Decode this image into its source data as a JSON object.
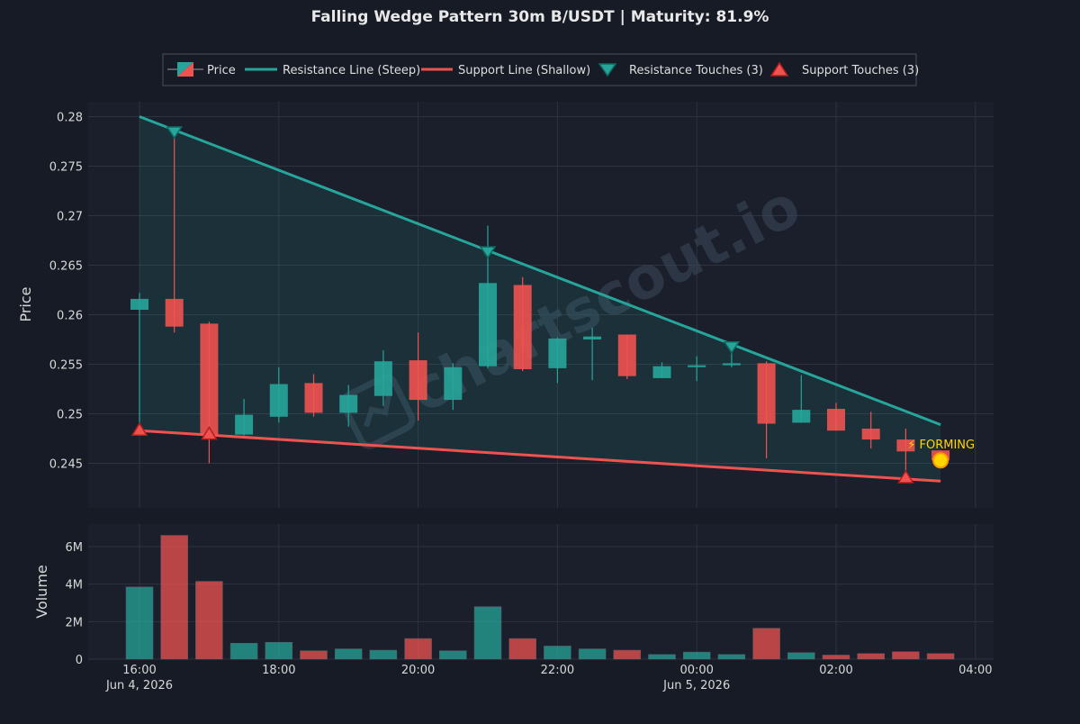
{
  "chart_data": [
    {
      "type": "candlestick",
      "title": "Falling Wedge Pattern 30m B/USDT | Maturity: 81.9%",
      "ylabel": "Price",
      "ylim": [
        0.2405,
        0.2815
      ],
      "yticks": [
        "0.245",
        "0.25",
        "0.255",
        "0.26",
        "0.265",
        "0.27",
        "0.275",
        "0.28"
      ],
      "ytick_values": [
        0.245,
        0.25,
        0.255,
        0.26,
        0.265,
        0.27,
        0.275,
        0.28
      ],
      "xticks": [
        {
          "time": "2026-06-04 16:00",
          "label": "16:00",
          "sublabel": "Jun 4, 2026"
        },
        {
          "time": "2026-06-04 18:00",
          "label": "18:00",
          "sublabel": ""
        },
        {
          "time": "2026-06-04 20:00",
          "label": "20:00",
          "sublabel": ""
        },
        {
          "time": "2026-06-04 22:00",
          "label": "22:00",
          "sublabel": ""
        },
        {
          "time": "2026-06-05 00:00",
          "label": "00:00",
          "sublabel": "Jun 5, 2026"
        },
        {
          "time": "2026-06-05 02:00",
          "label": "02:00",
          "sublabel": ""
        },
        {
          "time": "2026-06-05 04:00",
          "label": "04:00",
          "sublabel": ""
        }
      ],
      "grid": true,
      "legend_position": "top-center",
      "legend": [
        {
          "label": "Price",
          "kind": "candle"
        },
        {
          "label": "Resistance Line (Steep)",
          "kind": "line",
          "color": "#26a69a"
        },
        {
          "label": "Support Line (Shallow)",
          "kind": "line",
          "color": "#ef5350"
        },
        {
          "label": "Resistance Touches (3)",
          "kind": "down-triangle",
          "color": "#26a69a"
        },
        {
          "label": "Support Touches (3)",
          "kind": "up-triangle",
          "color": "#ef5350"
        }
      ],
      "colors": {
        "up": "#26a69a",
        "down": "#ef5350",
        "background": "#161b26",
        "plot_bg": "#1b1f2b",
        "grid": "#2e3340",
        "forming": "#ffd600",
        "watermark": "#3a4a5a"
      },
      "candles": [
        {
          "time": "2026-06-04 16:00",
          "open": 0.2605,
          "high": 0.2622,
          "low": 0.2483,
          "close": 0.2616
        },
        {
          "time": "2026-06-04 16:30",
          "open": 0.2616,
          "high": 0.2785,
          "low": 0.2582,
          "close": 0.2588
        },
        {
          "time": "2026-06-04 17:00",
          "open": 0.2591,
          "high": 0.2593,
          "low": 0.245,
          "close": 0.2479
        },
        {
          "time": "2026-06-04 17:30",
          "open": 0.2479,
          "high": 0.2515,
          "low": 0.2478,
          "close": 0.2499
        },
        {
          "time": "2026-06-04 18:00",
          "open": 0.2497,
          "high": 0.2547,
          "low": 0.2491,
          "close": 0.253
        },
        {
          "time": "2026-06-04 18:30",
          "open": 0.2531,
          "high": 0.254,
          "low": 0.2497,
          "close": 0.2501
        },
        {
          "time": "2026-06-04 19:00",
          "open": 0.2501,
          "high": 0.2529,
          "low": 0.2487,
          "close": 0.2519
        },
        {
          "time": "2026-06-04 19:30",
          "open": 0.2518,
          "high": 0.2564,
          "low": 0.2508,
          "close": 0.2553
        },
        {
          "time": "2026-06-04 20:00",
          "open": 0.2554,
          "high": 0.2582,
          "low": 0.2493,
          "close": 0.2514
        },
        {
          "time": "2026-06-04 20:30",
          "open": 0.2514,
          "high": 0.2551,
          "low": 0.2504,
          "close": 0.2547
        },
        {
          "time": "2026-06-04 21:00",
          "open": 0.2548,
          "high": 0.269,
          "low": 0.2546,
          "close": 0.2632
        },
        {
          "time": "2026-06-04 21:30",
          "open": 0.263,
          "high": 0.2638,
          "low": 0.2543,
          "close": 0.2545
        },
        {
          "time": "2026-06-04 22:00",
          "open": 0.2546,
          "high": 0.2577,
          "low": 0.2531,
          "close": 0.2576
        },
        {
          "time": "2026-06-04 22:30",
          "open": 0.2575,
          "high": 0.2587,
          "low": 0.2534,
          "close": 0.2578
        },
        {
          "time": "2026-06-04 23:00",
          "open": 0.258,
          "high": 0.258,
          "low": 0.2535,
          "close": 0.2538
        },
        {
          "time": "2026-06-04 23:30",
          "open": 0.2536,
          "high": 0.2552,
          "low": 0.2536,
          "close": 0.2548
        },
        {
          "time": "2026-06-05 00:00",
          "open": 0.2547,
          "high": 0.2558,
          "low": 0.2533,
          "close": 0.2549
        },
        {
          "time": "2026-06-05 00:30",
          "open": 0.2549,
          "high": 0.257,
          "low": 0.2547,
          "close": 0.2551
        },
        {
          "time": "2026-06-05 01:00",
          "open": 0.2551,
          "high": 0.2553,
          "low": 0.2455,
          "close": 0.249
        },
        {
          "time": "2026-06-05 01:30",
          "open": 0.2491,
          "high": 0.2539,
          "low": 0.2491,
          "close": 0.2504
        },
        {
          "time": "2026-06-05 02:00",
          "open": 0.2505,
          "high": 0.2511,
          "low": 0.2483,
          "close": 0.2483
        },
        {
          "time": "2026-06-05 02:30",
          "open": 0.2485,
          "high": 0.2502,
          "low": 0.2465,
          "close": 0.2474
        },
        {
          "time": "2026-06-05 03:00",
          "open": 0.2474,
          "high": 0.2485,
          "low": 0.2433,
          "close": 0.2462
        },
        {
          "time": "2026-06-05 03:30",
          "open": 0.2463,
          "high": 0.2463,
          "low": 0.245,
          "close": 0.2453
        }
      ],
      "resistance_line": {
        "start": {
          "time": "2026-06-04 16:00",
          "price": 0.28
        },
        "end": {
          "time": "2026-06-05 03:30",
          "price": 0.2489
        }
      },
      "support_line": {
        "start": {
          "time": "2026-06-04 16:00",
          "price": 0.2483
        },
        "end": {
          "time": "2026-06-05 03:30",
          "price": 0.2432
        }
      },
      "resistance_touches": [
        {
          "time": "2026-06-04 16:30",
          "price": 0.2785
        },
        {
          "time": "2026-06-04 21:00",
          "price": 0.2664
        },
        {
          "time": "2026-06-05 00:30",
          "price": 0.2568
        }
      ],
      "support_touches": [
        {
          "time": "2026-06-04 16:00",
          "price": 0.2483
        },
        {
          "time": "2026-06-04 17:00",
          "price": 0.2479
        },
        {
          "time": "2026-06-05 03:00",
          "price": 0.2435
        }
      ],
      "annotation": {
        "text": "⚡ FORMING",
        "time": "2026-06-05 03:30",
        "price": 0.2453
      },
      "watermark": "chartscout.io"
    },
    {
      "type": "bar",
      "ylabel": "Volume",
      "ylim": [
        0,
        7200000
      ],
      "yticks": [
        "0",
        "2M",
        "4M",
        "6M"
      ],
      "ytick_values": [
        0,
        2000000,
        4000000,
        6000000
      ],
      "volumes": [
        3850000,
        6600000,
        4150000,
        850000,
        900000,
        450000,
        550000,
        480000,
        1100000,
        450000,
        2800000,
        1100000,
        700000,
        550000,
        480000,
        250000,
        380000,
        250000,
        1650000,
        350000,
        220000,
        300000,
        400000,
        300000
      ]
    }
  ]
}
